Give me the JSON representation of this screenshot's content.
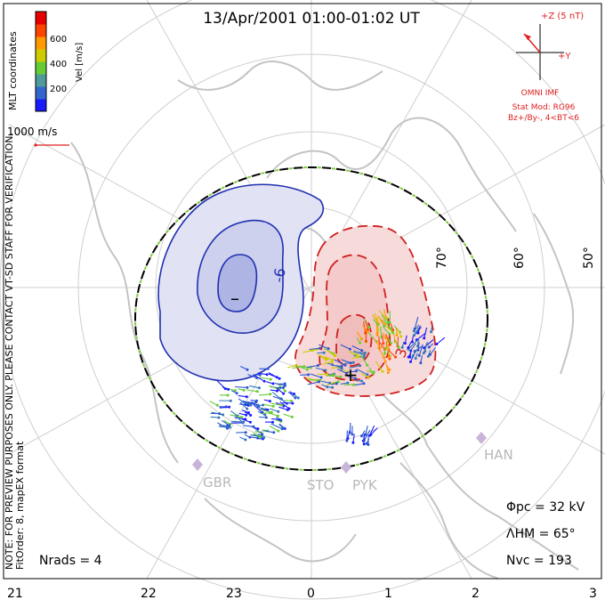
{
  "title": "13/Apr/2001 01:00-01:02 UT",
  "colorbar": {
    "label": "Vel [m/s]",
    "ticks": [
      "600",
      "400",
      "200"
    ],
    "colors": [
      "#1a1aff",
      "#3366cc",
      "#4f9a9a",
      "#66cc33",
      "#cccc00",
      "#ff9900",
      "#ff4400",
      "#e60000"
    ]
  },
  "coordinate_label": "MLT coordinates",
  "scale_vector_label": "1000 m/s",
  "watermark": "NOTE: FOR PREVIEW PURPOSES ONLY. PLEASE CONTACT VT-SD STAFF FOR VERIFICATION.",
  "fit_info": "FitOrder: 8, mapEX format",
  "imf": {
    "z_label": "+Z (5 nT)",
    "y_label": "+Y",
    "source": "OMNI IMF",
    "model_line1": "Stat Mod: RG96",
    "model_line2": "Bz+/By-, 4<BT<6"
  },
  "latitude_labels": [
    "70°",
    "60°",
    "50°"
  ],
  "contour_labels": [
    "-6",
    "3"
  ],
  "min_marker": "–",
  "max_marker": "+",
  "stations": [
    "GBR",
    "STO",
    "PYK",
    "HAN"
  ],
  "stats": {
    "phi_pc": "Φpc = 32 kV",
    "lambda_hm": "ΛHM = 65°",
    "n_vc": "Nvc = 193",
    "n_rads": "Nrads = 4"
  },
  "mlt_labels": [
    "21",
    "22",
    "23",
    "0",
    "1",
    "2",
    "3"
  ],
  "colors": {
    "negative_cell": "#2030b0",
    "positive_cell": "#d02020",
    "negative_fill": "#dcdff2",
    "positive_fill": "#f6d9d9",
    "grid": "#c8c8c8",
    "coast": "#c0c0c0",
    "annotation_red": "#e02020"
  }
}
